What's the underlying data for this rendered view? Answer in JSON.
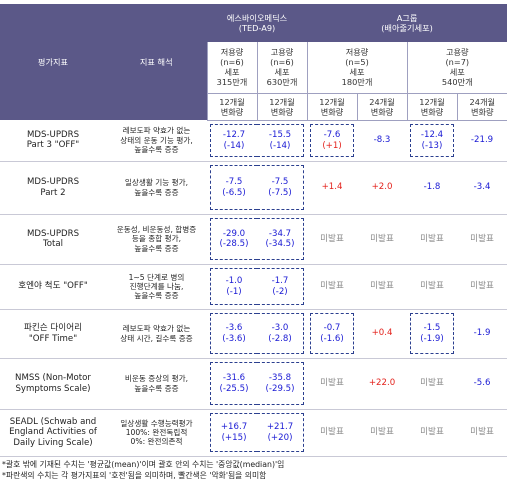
{
  "table": {
    "header": {
      "metric": "평가지표",
      "interpretation": "지표 해석",
      "groups": [
        {
          "lines": [
            "에스바이오메딕스",
            "(TED-A9)"
          ],
          "arms": [
            {
              "lines": [
                "저용량",
                "(n=6)",
                "세포",
                "315만개"
              ],
              "periods": [
                [
                  "12개월",
                  "변화량"
                ]
              ]
            },
            {
              "lines": [
                "고용량",
                "(n=6)",
                "세포",
                "630만개"
              ],
              "periods": [
                [
                  "12개월",
                  "변화량"
                ]
              ]
            }
          ]
        },
        {
          "lines": [
            "A그룹",
            "(배아줄기세포)"
          ],
          "arms": [
            {
              "lines": [
                "저용량",
                "(n=5)",
                "세포",
                "180만개"
              ],
              "periods": [
                [
                  "12개월",
                  "변화량"
                ],
                [
                  "24개월",
                  "변화량"
                ]
              ]
            },
            {
              "lines": [
                "고용량",
                "(n=7)",
                "세포",
                "540만개"
              ],
              "periods": [
                [
                  "12개월",
                  "변화량"
                ],
                [
                  "24개월",
                  "변화량"
                ]
              ]
            }
          ]
        }
      ]
    },
    "rows": [
      {
        "metric": [
          "MDS-UPDRS",
          "Part 3 \"OFF\""
        ],
        "interpretation": [
          "레보도파 약효가 없는",
          "상태의 운동 기능 평가,",
          "높을수록 증증"
        ],
        "values": [
          {
            "lines": [
              "-12.7",
              "(-14)"
            ],
            "colors": [
              "#1a1ad4",
              "#1a1ad4"
            ]
          },
          {
            "lines": [
              "-15.5",
              "(-14)"
            ],
            "colors": [
              "#1a1ad4",
              "#1a1ad4"
            ]
          },
          {
            "lines": [
              "-7.6",
              "(+1)"
            ],
            "colors": [
              "#1a1ad4",
              "#e3211b"
            ]
          },
          {
            "lines": [
              "-8.3"
            ],
            "colors": [
              "#1a1ad4"
            ]
          },
          {
            "lines": [
              "-12.4",
              "(-13)"
            ],
            "colors": [
              "#1a1ad4",
              "#1a1ad4"
            ]
          },
          {
            "lines": [
              "-21.9"
            ],
            "colors": [
              "#1a1ad4"
            ]
          }
        ]
      },
      {
        "metric": [
          "MDS-UPDRS",
          "Part 2"
        ],
        "interpretation": [
          "일상생활 기능 평가,",
          "높을수록 증증"
        ],
        "values": [
          {
            "lines": [
              "-7.5",
              "(-6.5)"
            ],
            "colors": [
              "#1a1ad4",
              "#1a1ad4"
            ]
          },
          {
            "lines": [
              "-7.5",
              "(-7.5)"
            ],
            "colors": [
              "#1a1ad4",
              "#1a1ad4"
            ]
          },
          {
            "lines": [
              "+1.4"
            ],
            "colors": [
              "#e3211b"
            ]
          },
          {
            "lines": [
              "+2.0"
            ],
            "colors": [
              "#e3211b"
            ]
          },
          {
            "lines": [
              "-1.8"
            ],
            "colors": [
              "#1a1ad4"
            ]
          },
          {
            "lines": [
              "-3.4"
            ],
            "colors": [
              "#1a1ad4"
            ]
          }
        ]
      },
      {
        "metric": [
          "MDS-UPDRS",
          "Total"
        ],
        "interpretation": [
          "운동성, 비운동성, 합병증",
          "등을 종합 평가,",
          "높을수록 증증"
        ],
        "values": [
          {
            "lines": [
              "-29.0",
              "(-28.5)"
            ],
            "colors": [
              "#1a1ad4",
              "#1a1ad4"
            ]
          },
          {
            "lines": [
              "-34.7",
              "(-34.5)"
            ],
            "colors": [
              "#1a1ad4",
              "#1a1ad4"
            ]
          },
          {
            "lines": [
              "미발표"
            ],
            "colors": [
              "#8a8a8a"
            ]
          },
          {
            "lines": [
              "미발표"
            ],
            "colors": [
              "#8a8a8a"
            ]
          },
          {
            "lines": [
              "미발표"
            ],
            "colors": [
              "#8a8a8a"
            ]
          },
          {
            "lines": [
              "미발표"
            ],
            "colors": [
              "#8a8a8a"
            ]
          }
        ]
      },
      {
        "metric": [
          "호엔야 척도 \"OFF\""
        ],
        "interpretation": [
          "1~5 단계로 병의",
          "진행단계를 나눔,",
          "높을수록 증증"
        ],
        "values": [
          {
            "lines": [
              "-1.0",
              "(-1)"
            ],
            "colors": [
              "#1a1ad4",
              "#1a1ad4"
            ]
          },
          {
            "lines": [
              "-1.7",
              "(-2)"
            ],
            "colors": [
              "#1a1ad4",
              "#1a1ad4"
            ]
          },
          {
            "lines": [
              "미발표"
            ],
            "colors": [
              "#8a8a8a"
            ]
          },
          {
            "lines": [
              "미발표"
            ],
            "colors": [
              "#8a8a8a"
            ]
          },
          {
            "lines": [
              "미발표"
            ],
            "colors": [
              "#8a8a8a"
            ]
          },
          {
            "lines": [
              "미발표"
            ],
            "colors": [
              "#8a8a8a"
            ]
          }
        ]
      },
      {
        "metric": [
          "파킨슨 다이어리",
          "\"OFF Time\""
        ],
        "interpretation": [
          "레보도파 약효가 없는",
          "상태 시간, 길수록 증증"
        ],
        "values": [
          {
            "lines": [
              "-3.6",
              "(-3.6)"
            ],
            "colors": [
              "#1a1ad4",
              "#1a1ad4"
            ]
          },
          {
            "lines": [
              "-3.0",
              "(-2.8)"
            ],
            "colors": [
              "#1a1ad4",
              "#1a1ad4"
            ]
          },
          {
            "lines": [
              "-0.7",
              "(-1.6)"
            ],
            "colors": [
              "#1a1ad4",
              "#1a1ad4"
            ]
          },
          {
            "lines": [
              "+0.4"
            ],
            "colors": [
              "#e3211b"
            ]
          },
          {
            "lines": [
              "-1.5",
              "(-1.9)"
            ],
            "colors": [
              "#1a1ad4",
              "#1a1ad4"
            ]
          },
          {
            "lines": [
              "-1.9"
            ],
            "colors": [
              "#1a1ad4"
            ]
          }
        ]
      },
      {
        "metric": [
          "NMSS (Non-Motor",
          "Symptoms Scale)"
        ],
        "interpretation": [
          "비운동 증상의 평가,",
          "높을수록 증증"
        ],
        "values": [
          {
            "lines": [
              "-31.6",
              "(-25.5)"
            ],
            "colors": [
              "#1a1ad4",
              "#1a1ad4"
            ]
          },
          {
            "lines": [
              "-35.8",
              "(-29.5)"
            ],
            "colors": [
              "#1a1ad4",
              "#1a1ad4"
            ]
          },
          {
            "lines": [
              "미발표"
            ],
            "colors": [
              "#8a8a8a"
            ]
          },
          {
            "lines": [
              "+22.0"
            ],
            "colors": [
              "#e3211b"
            ]
          },
          {
            "lines": [
              "미발표"
            ],
            "colors": [
              "#8a8a8a"
            ]
          },
          {
            "lines": [
              "-5.6"
            ],
            "colors": [
              "#1a1ad4"
            ]
          }
        ]
      },
      {
        "metric": [
          "SEADL (Schwab and",
          "England Activities of",
          "Daily Living Scale)"
        ],
        "interpretation": [
          "일상생활 수행능력평가",
          "100%: 완전독립적",
          "0%: 완전의존적"
        ],
        "values": [
          {
            "lines": [
              "+16.7",
              "(+15)"
            ],
            "colors": [
              "#1a1ad4",
              "#1a1ad4"
            ]
          },
          {
            "lines": [
              "+21.7",
              "(+20)"
            ],
            "colors": [
              "#1a1ad4",
              "#1a1ad4"
            ]
          },
          {
            "lines": [
              "미발표"
            ],
            "colors": [
              "#8a8a8a"
            ]
          },
          {
            "lines": [
              "미발표"
            ],
            "colors": [
              "#8a8a8a"
            ]
          },
          {
            "lines": [
              "미발표"
            ],
            "colors": [
              "#8a8a8a"
            ]
          },
          {
            "lines": [
              "미발표"
            ],
            "colors": [
              "#8a8a8a"
            ]
          }
        ]
      }
    ]
  },
  "footnotes": [
    "*괄호 밖에 기재된 수치는 '평균값(mean)'이며 괄호 안의 수치는 '중앙값(median)'임",
    "*파란색의 수치는 각 평가지표의 '호전'됨을 의미하며, 빨간색은 '악화'됨을 의미함"
  ]
}
